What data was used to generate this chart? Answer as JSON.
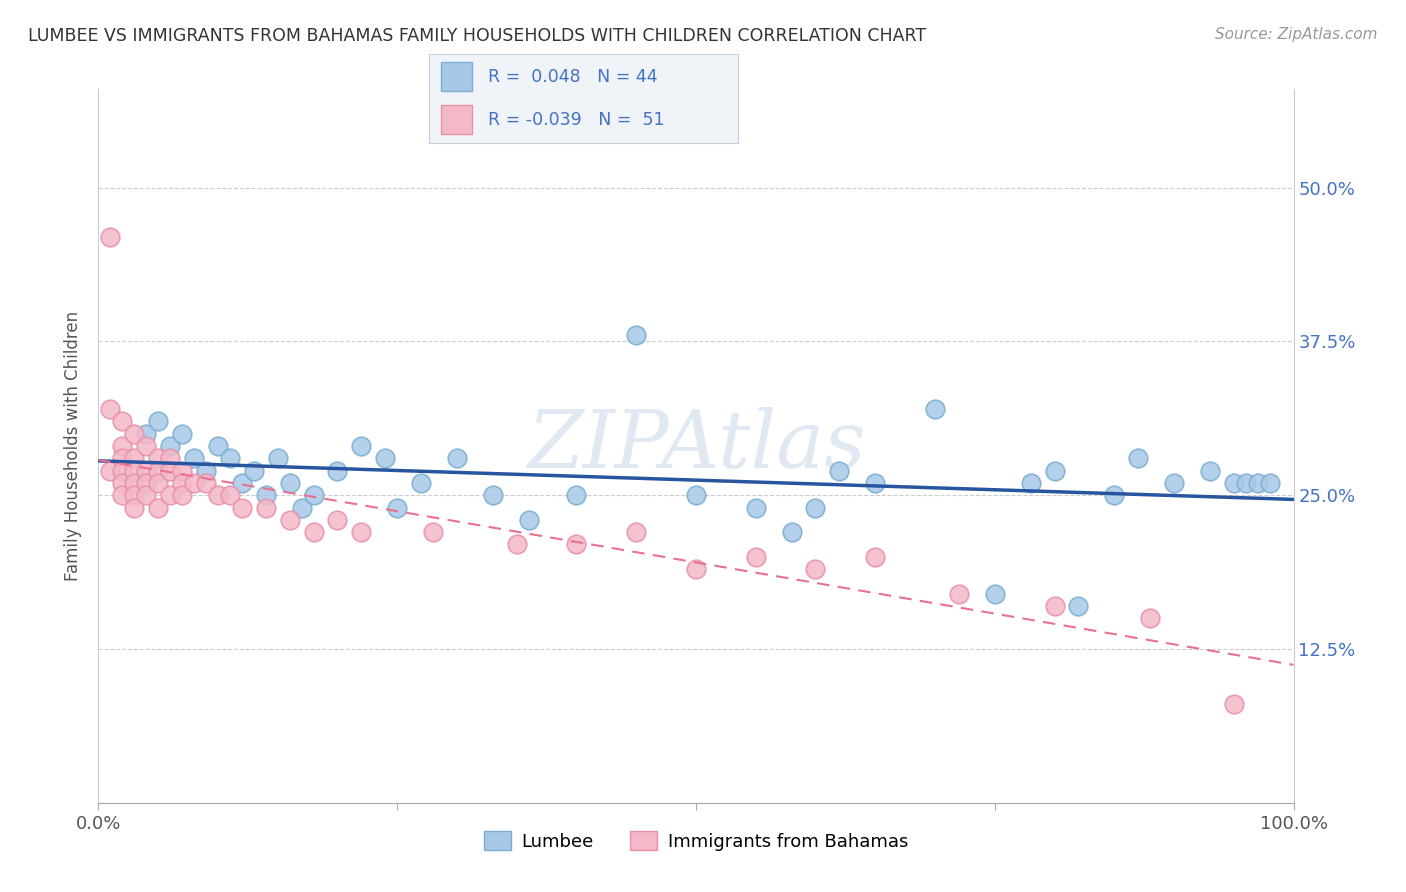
{
  "title": "LUMBEE VS IMMIGRANTS FROM BAHAMAS FAMILY HOUSEHOLDS WITH CHILDREN CORRELATION CHART",
  "source": "Source: ZipAtlas.com",
  "ylabel": "Family Households with Children",
  "yticks": [
    "12.5%",
    "25.0%",
    "37.5%",
    "50.0%"
  ],
  "ytick_vals": [
    0.125,
    0.25,
    0.375,
    0.5
  ],
  "legend_label1": "Lumbee",
  "legend_label2": "Immigrants from Bahamas",
  "R1": 0.048,
  "N1": 44,
  "R2": -0.039,
  "N2": 51,
  "color_blue": "#a8c8e8",
  "color_blue_edge": "#7aaed0",
  "color_pink": "#f4b8c8",
  "color_pink_edge": "#e890a8",
  "color_blue_line": "#2855a0",
  "color_pink_line": "#e87090",
  "lumbee_x": [
    0.04,
    0.05,
    0.06,
    0.07,
    0.08,
    0.09,
    0.1,
    0.11,
    0.12,
    0.13,
    0.14,
    0.15,
    0.16,
    0.17,
    0.18,
    0.2,
    0.22,
    0.24,
    0.25,
    0.27,
    0.3,
    0.33,
    0.36,
    0.4,
    0.45,
    0.5,
    0.55,
    0.58,
    0.6,
    0.62,
    0.65,
    0.7,
    0.75,
    0.78,
    0.8,
    0.82,
    0.85,
    0.87,
    0.9,
    0.93,
    0.95,
    0.96,
    0.97,
    0.98
  ],
  "lumbee_y": [
    0.3,
    0.31,
    0.29,
    0.3,
    0.28,
    0.27,
    0.29,
    0.28,
    0.26,
    0.27,
    0.25,
    0.28,
    0.26,
    0.24,
    0.25,
    0.27,
    0.29,
    0.28,
    0.24,
    0.26,
    0.28,
    0.25,
    0.23,
    0.25,
    0.38,
    0.25,
    0.24,
    0.22,
    0.24,
    0.27,
    0.26,
    0.32,
    0.17,
    0.26,
    0.27,
    0.16,
    0.25,
    0.28,
    0.26,
    0.27,
    0.26,
    0.26,
    0.26,
    0.26
  ],
  "bahamas_x": [
    0.01,
    0.01,
    0.01,
    0.02,
    0.02,
    0.02,
    0.02,
    0.02,
    0.02,
    0.03,
    0.03,
    0.03,
    0.03,
    0.03,
    0.03,
    0.04,
    0.04,
    0.04,
    0.04,
    0.05,
    0.05,
    0.05,
    0.05,
    0.06,
    0.06,
    0.06,
    0.07,
    0.07,
    0.07,
    0.08,
    0.09,
    0.1,
    0.11,
    0.12,
    0.14,
    0.16,
    0.18,
    0.2,
    0.22,
    0.28,
    0.35,
    0.4,
    0.45,
    0.5,
    0.55,
    0.6,
    0.65,
    0.72,
    0.8,
    0.88,
    0.95
  ],
  "bahamas_y": [
    0.46,
    0.32,
    0.27,
    0.31,
    0.29,
    0.28,
    0.27,
    0.26,
    0.25,
    0.3,
    0.28,
    0.27,
    0.26,
    0.25,
    0.24,
    0.29,
    0.27,
    0.26,
    0.25,
    0.28,
    0.27,
    0.26,
    0.24,
    0.28,
    0.27,
    0.25,
    0.27,
    0.26,
    0.25,
    0.26,
    0.26,
    0.25,
    0.25,
    0.24,
    0.24,
    0.23,
    0.22,
    0.23,
    0.22,
    0.22,
    0.21,
    0.21,
    0.22,
    0.19,
    0.2,
    0.19,
    0.2,
    0.17,
    0.16,
    0.15,
    0.08
  ],
  "watermark": "ZIPAtlas"
}
